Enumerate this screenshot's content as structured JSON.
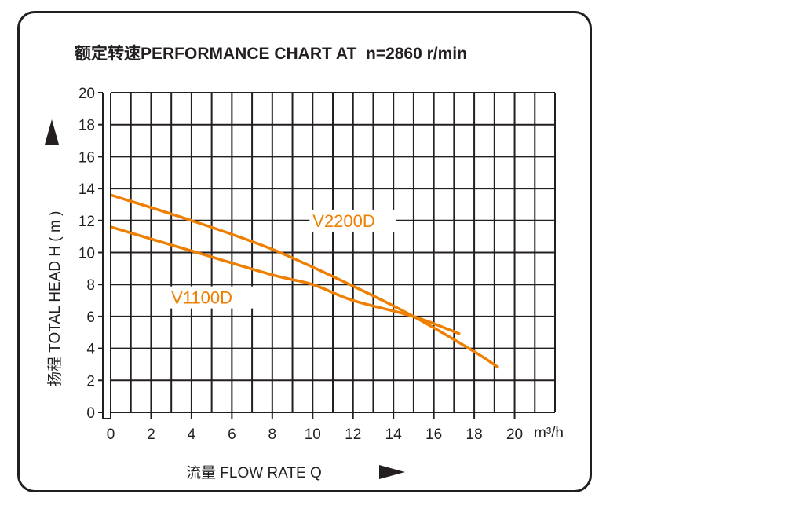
{
  "chart_data": {
    "type": "line",
    "title": "额定转速PERFORMANCE CHART AT  n=2860 r/min",
    "xlabel": "流量 FLOW RATE  Q",
    "ylabel": "扬程 TOTAL HEAD  H ( m )",
    "x_unit": "m³/h",
    "xlim": [
      0,
      22
    ],
    "ylim": [
      0,
      20
    ],
    "x_ticks": [
      0,
      2,
      4,
      6,
      8,
      10,
      12,
      14,
      16,
      18,
      20
    ],
    "y_ticks": [
      0,
      2,
      4,
      6,
      8,
      10,
      12,
      14,
      16,
      18,
      20
    ],
    "grid": true,
    "line_color": "#ee7f00",
    "series": [
      {
        "name": "V2200D",
        "x": [
          0,
          4,
          8,
          12,
          15,
          18,
          19.2
        ],
        "y": [
          13.6,
          12.0,
          10.2,
          7.9,
          6.0,
          3.8,
          2.8
        ]
      },
      {
        "name": "V1100D",
        "x": [
          0,
          4,
          8,
          10,
          12,
          15,
          17.3
        ],
        "y": [
          11.6,
          10.1,
          8.6,
          8.0,
          7.0,
          6.0,
          4.9
        ]
      }
    ]
  }
}
